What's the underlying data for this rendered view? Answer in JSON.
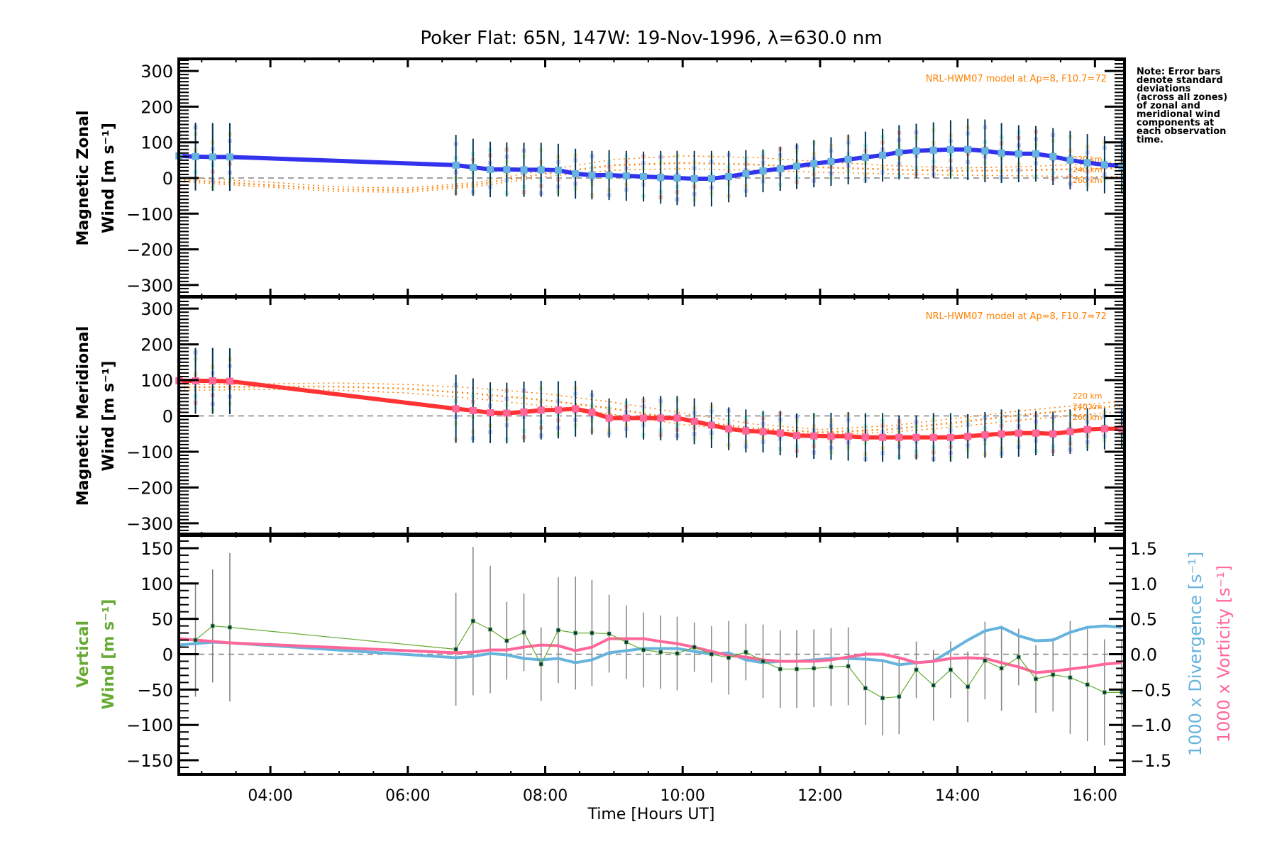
{
  "chart_data": [
    {
      "type": "line",
      "panel": "zonal",
      "title": "Poker Flat: 65N, 147W: 19-Nov-1996, λ=630.0 nm",
      "ylabel_line1": "Magnetic Zonal",
      "ylabel_line2": "Wind [m s⁻¹]",
      "ylim": [
        -334,
        334
      ],
      "yticks": [
        -300,
        -200,
        -100,
        0,
        100,
        200,
        300
      ],
      "ytick_labels": [
        "−300",
        "−200",
        "−100",
        "0",
        "100",
        "200",
        "300"
      ],
      "model_label": "NRL-HWM07 model at Ap=8, F10.7=72",
      "model_altitude_labels": [
        "220 km",
        "240 km",
        "260 km"
      ],
      "color": "#3333ee",
      "x": [
        2.67,
        2.91,
        3.16,
        3.41,
        6.7,
        6.95,
        7.2,
        7.44,
        7.69,
        7.94,
        8.19,
        8.44,
        8.68,
        8.93,
        9.18,
        9.43,
        9.68,
        9.92,
        10.17,
        10.42,
        10.67,
        10.92,
        11.17,
        11.42,
        11.66,
        11.91,
        12.16,
        12.41,
        12.66,
        12.91,
        13.15,
        13.4,
        13.65,
        13.9,
        14.15,
        14.4,
        14.64,
        14.89,
        15.14,
        15.39,
        15.64,
        15.89,
        16.14,
        16.39
      ],
      "values": [
        62,
        60,
        59,
        59,
        36,
        30,
        24,
        24,
        23,
        23,
        22,
        12,
        8,
        8,
        6,
        4,
        2,
        0,
        -2,
        -2,
        4,
        12,
        20,
        26,
        33,
        40,
        46,
        52,
        58,
        64,
        72,
        76,
        78,
        80,
        80,
        76,
        70,
        68,
        68,
        60,
        50,
        43,
        37,
        34
      ],
      "error_halfwidth": [
        95,
        95,
        95,
        95,
        85,
        80,
        78,
        76,
        76,
        76,
        74,
        70,
        68,
        70,
        70,
        70,
        74,
        76,
        78,
        78,
        72,
        66,
        60,
        62,
        64,
        66,
        68,
        70,
        72,
        74,
        76,
        76,
        78,
        82,
        86,
        88,
        84,
        80,
        78,
        80,
        82,
        80,
        80,
        78
      ],
      "model_series": [
        {
          "name": "220 km",
          "x": [
            2.67,
            4.0,
            5.0,
            6.0,
            7.0,
            8.0,
            9.0,
            10.0,
            11.0,
            12.0,
            13.0,
            14.0,
            15.0,
            16.0,
            16.43
          ],
          "values": [
            2,
            -12,
            -25,
            -28,
            -12,
            22,
            52,
            62,
            58,
            46,
            35,
            28,
            32,
            40,
            48
          ]
        },
        {
          "name": "240 km",
          "x": [
            2.67,
            4.0,
            5.0,
            6.0,
            7.0,
            8.0,
            9.0,
            10.0,
            11.0,
            12.0,
            13.0,
            14.0,
            15.0,
            16.0,
            16.43
          ],
          "values": [
            -5,
            -20,
            -32,
            -34,
            -18,
            12,
            36,
            42,
            38,
            30,
            24,
            20,
            22,
            26,
            28
          ]
        },
        {
          "name": "260 km",
          "x": [
            2.67,
            4.0,
            5.0,
            6.0,
            7.0,
            8.0,
            9.0,
            10.0,
            11.0,
            12.0,
            13.0,
            14.0,
            15.0,
            16.0,
            16.43
          ],
          "values": [
            -10,
            -26,
            -38,
            -40,
            -24,
            4,
            22,
            26,
            22,
            16,
            12,
            8,
            6,
            4,
            4
          ]
        }
      ]
    },
    {
      "type": "line",
      "panel": "meridional",
      "ylabel_line1": "Magnetic Meridional",
      "ylabel_line2": "Wind [m s⁻¹]",
      "ylim": [
        -334,
        334
      ],
      "yticks": [
        -300,
        -200,
        -100,
        0,
        100,
        200,
        300
      ],
      "ytick_labels": [
        "−300",
        "−200",
        "−100",
        "0",
        "100",
        "200",
        "300"
      ],
      "model_label": "NRL-HWM07 model at Ap=8, F10.7=72",
      "model_altitude_labels": [
        "220 km",
        "240 km",
        "260 km"
      ],
      "color": "#ff3333",
      "x": [
        2.67,
        2.91,
        3.16,
        3.41,
        6.7,
        6.95,
        7.2,
        7.44,
        7.69,
        7.94,
        8.19,
        8.44,
        8.68,
        8.93,
        9.18,
        9.43,
        9.68,
        9.92,
        10.17,
        10.42,
        10.67,
        10.92,
        11.17,
        11.42,
        11.66,
        11.91,
        12.16,
        12.41,
        12.66,
        12.91,
        13.15,
        13.4,
        13.65,
        13.9,
        14.15,
        14.4,
        14.64,
        14.89,
        15.14,
        15.39,
        15.64,
        15.89,
        16.14,
        16.39
      ],
      "values": [
        98,
        98,
        98,
        97,
        20,
        15,
        9,
        8,
        11,
        16,
        17,
        20,
        10,
        -6,
        -6,
        -6,
        -6,
        -6,
        -15,
        -26,
        -36,
        -42,
        -44,
        -48,
        -55,
        -56,
        -57,
        -57,
        -60,
        -60,
        -60,
        -60,
        -60,
        -60,
        -57,
        -53,
        -50,
        -48,
        -48,
        -50,
        -44,
        -38,
        -36,
        -36
      ],
      "error_halfwidth": [
        90,
        92,
        92,
        92,
        95,
        90,
        85,
        85,
        85,
        82,
        80,
        78,
        62,
        55,
        55,
        60,
        62,
        62,
        64,
        64,
        60,
        60,
        58,
        62,
        62,
        64,
        66,
        68,
        68,
        68,
        62,
        62,
        68,
        68,
        62,
        64,
        68,
        66,
        62,
        62,
        62,
        60,
        58,
        56
      ],
      "model_series": [
        {
          "name": "220 km",
          "x": [
            2.67,
            4.0,
            5.0,
            6.0,
            7.0,
            8.0,
            9.0,
            10.0,
            11.0,
            12.0,
            13.0,
            14.0,
            15.0,
            16.0,
            16.43
          ],
          "values": [
            88,
            90,
            92,
            88,
            78,
            62,
            38,
            8,
            -22,
            -38,
            -28,
            -6,
            16,
            34,
            42
          ]
        },
        {
          "name": "240 km",
          "x": [
            2.67,
            4.0,
            5.0,
            6.0,
            7.0,
            8.0,
            9.0,
            10.0,
            11.0,
            12.0,
            13.0,
            14.0,
            15.0,
            16.0,
            16.43
          ],
          "values": [
            80,
            82,
            82,
            76,
            62,
            44,
            20,
            -10,
            -34,
            -46,
            -38,
            -18,
            4,
            22,
            30
          ]
        },
        {
          "name": "260 km",
          "x": [
            2.67,
            4.0,
            5.0,
            6.0,
            7.0,
            8.0,
            9.0,
            10.0,
            11.0,
            12.0,
            13.0,
            14.0,
            15.0,
            16.0,
            16.43
          ],
          "values": [
            72,
            74,
            72,
            64,
            48,
            28,
            4,
            -24,
            -44,
            -52,
            -46,
            -30,
            -10,
            6,
            12
          ]
        }
      ]
    },
    {
      "type": "line",
      "panel": "vertical",
      "ylabel_line1": "Vertical",
      "ylabel_line2": "Wind [m s⁻¹]",
      "ylabel_color": "#66aa33",
      "ylim": [
        -170,
        170
      ],
      "yticks": [
        -150,
        -100,
        -50,
        0,
        50,
        100,
        150
      ],
      "ytick_labels": [
        "−150",
        "−100",
        "−50",
        "0",
        "50",
        "100",
        "150"
      ],
      "y2lim": [
        -1.7,
        1.7
      ],
      "y2ticks": [
        -1.5,
        -1.0,
        -0.5,
        0.0,
        0.5,
        1.0,
        1.5
      ],
      "y2tick_labels": [
        "−1.5",
        "−1.0",
        "−0.5",
        "0.0",
        "0.5",
        "1.0",
        "1.5"
      ],
      "y2label_divergence": "1000 x Divergence [s⁻¹]",
      "y2label_vorticity": "1000 x Vorticity [s⁻¹]",
      "xlabel": "Time [Hours UT]",
      "xlim": [
        2.667,
        16.43
      ],
      "xticks": [
        4,
        6,
        8,
        10,
        12,
        14,
        16
      ],
      "xtick_labels": [
        "04:00",
        "06:00",
        "08:00",
        "10:00",
        "12:00",
        "14:00",
        "16:00"
      ],
      "series": [
        {
          "name": "Vertical wind",
          "color": "#66aa33",
          "x": [
            2.91,
            3.16,
            3.41,
            6.7,
            6.95,
            7.2,
            7.44,
            7.69,
            7.94,
            8.19,
            8.44,
            8.68,
            8.93,
            9.18,
            9.43,
            9.68,
            9.92,
            10.17,
            10.42,
            10.67,
            10.92,
            11.17,
            11.42,
            11.66,
            11.91,
            12.16,
            12.41,
            12.66,
            12.91,
            13.15,
            13.4,
            13.65,
            13.9,
            14.15,
            14.4,
            14.64,
            14.89,
            15.14,
            15.39,
            15.64,
            15.89,
            16.14,
            16.39
          ],
          "values": [
            20,
            40,
            38,
            7,
            47,
            35,
            19,
            31,
            -14,
            34,
            30,
            30,
            29,
            17,
            6,
            3,
            1,
            10,
            0,
            -5,
            3,
            -10,
            -21,
            -21,
            -20,
            -18,
            -17,
            -48,
            -62,
            -60,
            -22,
            -44,
            -22,
            -46,
            -9,
            -20,
            -4,
            -35,
            -29,
            -33,
            -43,
            -54,
            -54
          ],
          "error_halfwidth": [
            80,
            80,
            105,
            80,
            105,
            90,
            55,
            55,
            52,
            75,
            80,
            75,
            55,
            52,
            53,
            52,
            52,
            35,
            40,
            52,
            40,
            52,
            55,
            55,
            55,
            55,
            55,
            52,
            53,
            53,
            40,
            50,
            40,
            50,
            55,
            60,
            40,
            48,
            52,
            80,
            80,
            75,
            75
          ]
        },
        {
          "name": "1000 x Divergence",
          "axis": "right",
          "color": "#66b3dd",
          "x": [
            2.67,
            3.16,
            3.41,
            6.7,
            6.95,
            7.2,
            7.44,
            7.69,
            7.94,
            8.19,
            8.44,
            8.68,
            8.93,
            9.18,
            9.43,
            9.68,
            9.92,
            10.17,
            10.42,
            10.67,
            10.92,
            11.17,
            11.42,
            11.66,
            11.91,
            12.16,
            12.41,
            12.66,
            12.91,
            13.15,
            13.4,
            13.65,
            13.9,
            14.15,
            14.4,
            14.64,
            14.89,
            15.14,
            15.39,
            15.64,
            15.89,
            16.14,
            16.39
          ],
          "values": [
            0.13,
            0.17,
            0.16,
            -0.05,
            -0.03,
            0.01,
            -0.01,
            -0.06,
            -0.08,
            -0.06,
            -0.12,
            -0.08,
            0.02,
            0.05,
            0.08,
            0.08,
            0.08,
            0.04,
            0.0,
            0.02,
            -0.08,
            -0.12,
            -0.1,
            -0.1,
            -0.08,
            -0.06,
            -0.06,
            -0.07,
            -0.09,
            -0.15,
            -0.12,
            -0.1,
            0.05,
            0.2,
            0.33,
            0.38,
            0.26,
            0.19,
            0.2,
            0.31,
            0.38,
            0.4,
            0.38
          ]
        },
        {
          "name": "1000 x Vorticity",
          "axis": "right",
          "color": "#ff6699",
          "x": [
            2.67,
            3.16,
            3.41,
            6.7,
            6.95,
            7.2,
            7.44,
            7.69,
            7.94,
            8.19,
            8.44,
            8.68,
            8.93,
            9.18,
            9.43,
            9.68,
            9.92,
            10.17,
            10.42,
            10.67,
            10.92,
            11.17,
            11.42,
            11.66,
            11.91,
            12.16,
            12.41,
            12.66,
            12.91,
            13.15,
            13.4,
            13.65,
            13.9,
            14.15,
            14.4,
            14.64,
            14.89,
            15.14,
            15.39,
            15.64,
            15.89,
            16.14,
            16.39
          ],
          "values": [
            0.22,
            0.18,
            0.16,
            0.02,
            0.03,
            0.06,
            0.06,
            0.1,
            0.13,
            0.12,
            0.05,
            0.1,
            0.22,
            0.22,
            0.22,
            0.18,
            0.15,
            0.1,
            0.04,
            -0.02,
            -0.04,
            -0.08,
            -0.1,
            -0.1,
            -0.1,
            -0.08,
            -0.04,
            0.0,
            0.0,
            -0.05,
            -0.12,
            -0.1,
            -0.06,
            -0.05,
            -0.06,
            -0.12,
            -0.18,
            -0.26,
            -0.24,
            -0.21,
            -0.18,
            -0.14,
            -0.12
          ]
        }
      ]
    }
  ],
  "note_text": "Note: Error bars\ndenote standard\ndeviations\n(across all zones)\nof zonal and\nmeridional wind\ncomponents at\neach observation\ntime."
}
